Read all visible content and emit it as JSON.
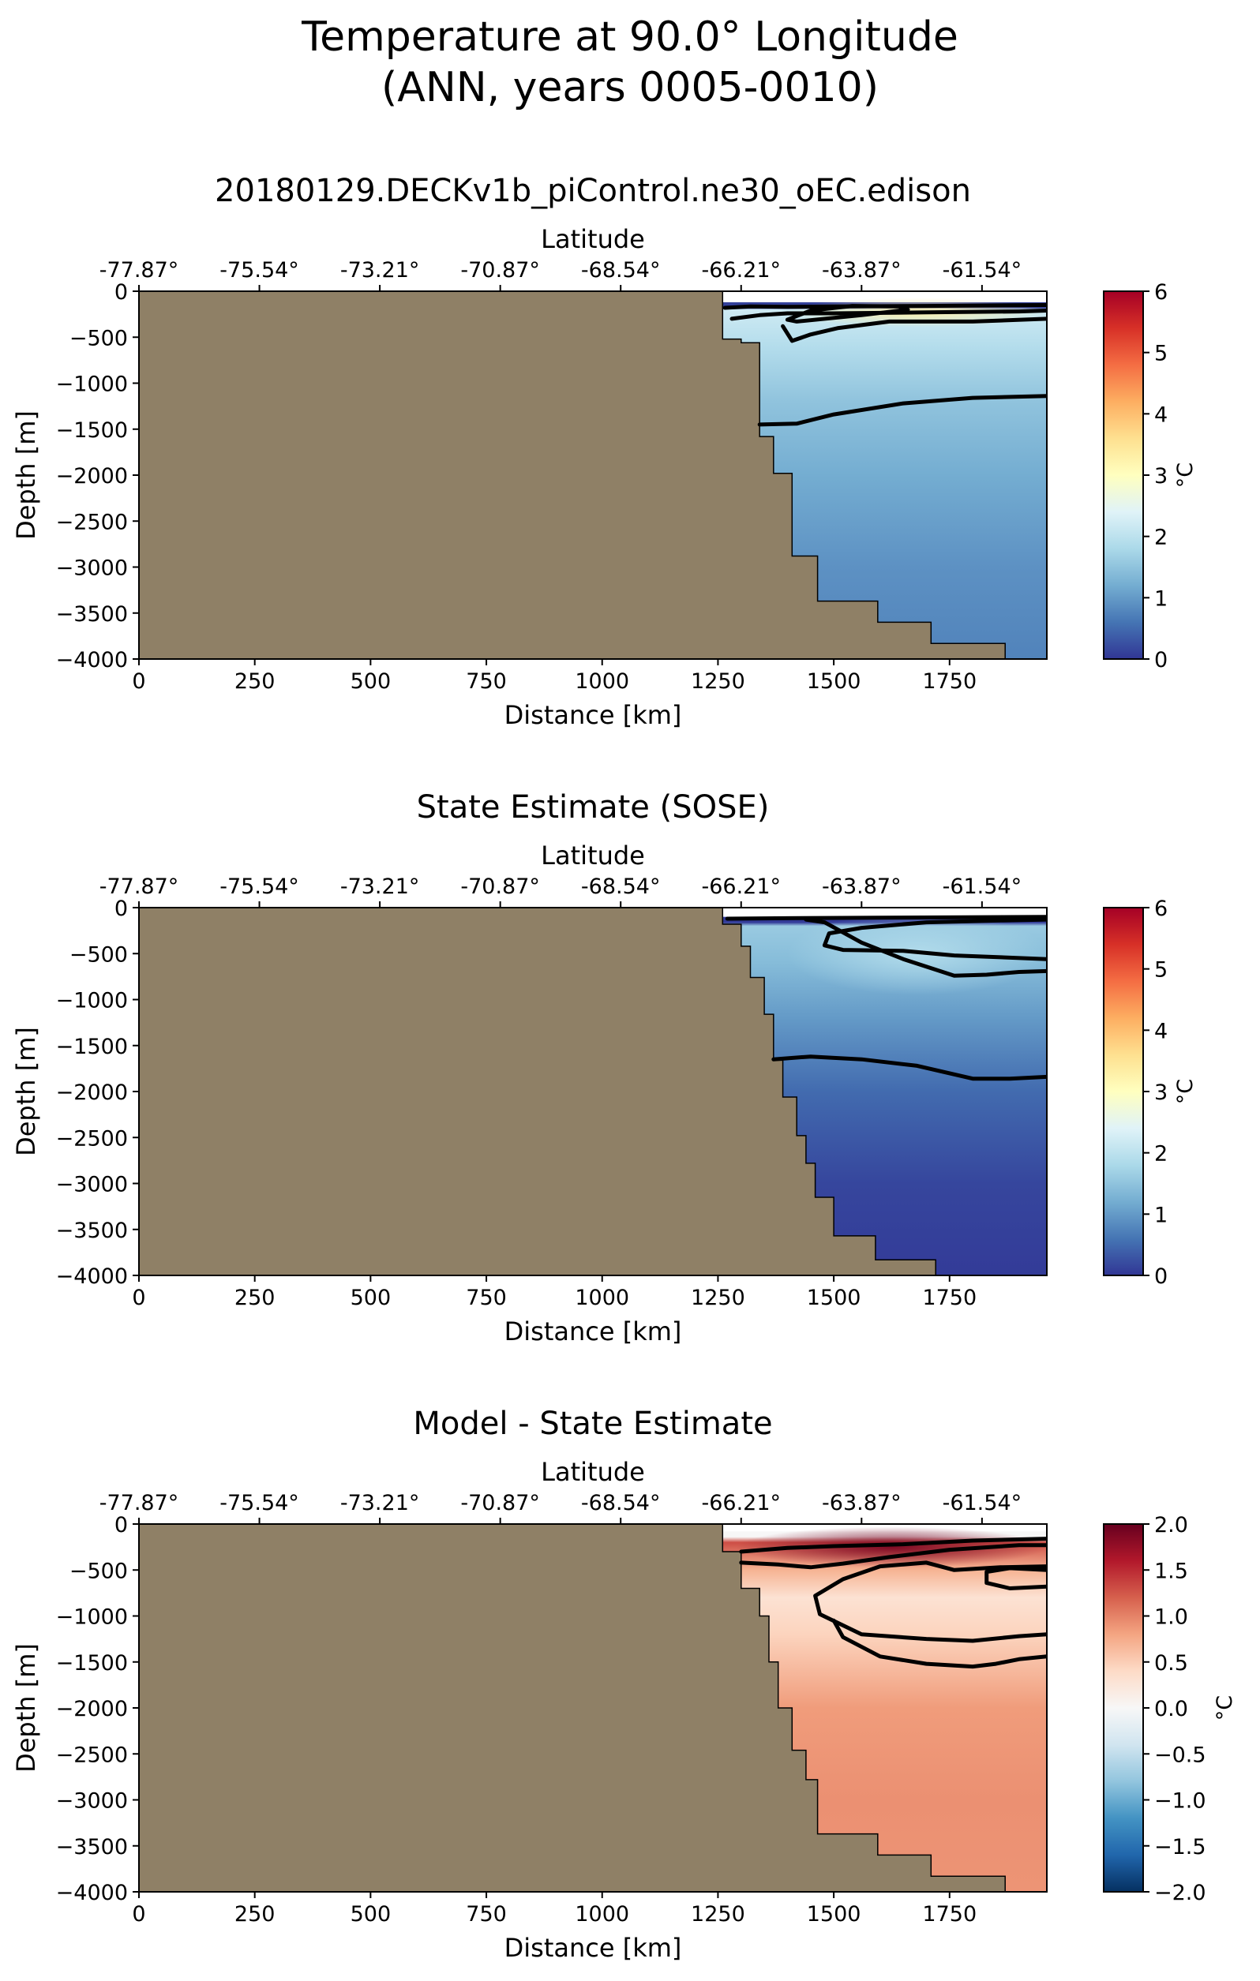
{
  "figure": {
    "title_line1": "Temperature at 90.0° Longitude",
    "title_line2": "(ANN, years 0005-0010)"
  },
  "colors": {
    "land": "#8f8066",
    "contour": "#000000",
    "rdylbu": [
      "#313695",
      "#4575b4",
      "#74add1",
      "#abd9e9",
      "#e0f3f8",
      "#ffffbf",
      "#fee090",
      "#fdae61",
      "#f46d43",
      "#d73027",
      "#a50026"
    ],
    "rdbu": [
      "#053061",
      "#2166ac",
      "#4393c3",
      "#92c5de",
      "#d1e5f0",
      "#f7f7f7",
      "#fddbc7",
      "#f4a582",
      "#d6604d",
      "#b2182b",
      "#67001f"
    ]
  },
  "chart_data": [
    {
      "type": "heatmap",
      "title": "20180129.DECKv1b_piControl.ne30_oEC.edison",
      "xlabel": "Distance [km]",
      "ylabel": "Depth [m]",
      "top_xlabel": "Latitude",
      "xlim": [
        0,
        1960
      ],
      "ylim": [
        -4000,
        0
      ],
      "xticks": [
        0,
        250,
        500,
        750,
        1000,
        1250,
        1500,
        1750
      ],
      "xtick_labels": [
        "0",
        "250",
        "500",
        "750",
        "1000",
        "1250",
        "1500",
        "1750"
      ],
      "yticks": [
        0,
        -500,
        -1000,
        -1500,
        -2000,
        -2500,
        -3000,
        -3500,
        -4000
      ],
      "ytick_labels": [
        "0",
        "−500",
        "−1000",
        "−1500",
        "−2000",
        "−2500",
        "−3000",
        "−3500",
        "−4000"
      ],
      "lat_tick_positions_km": [
        0,
        260,
        520,
        780,
        1040,
        1300,
        1560,
        1820
      ],
      "lat_ticks": [
        "-77.87°",
        "-75.54°",
        "-73.21°",
        "-70.87°",
        "-68.54°",
        "-66.21°",
        "-63.87°",
        "-61.54°"
      ],
      "colorbar": {
        "label": "°C",
        "range": [
          0,
          6
        ],
        "ticks": [
          0,
          1,
          2,
          3,
          4,
          5,
          6
        ],
        "tick_labels": [
          "0",
          "1",
          "2",
          "3",
          "4",
          "5",
          "6"
        ],
        "cmap": "rdylbu"
      },
      "bathymetry": [
        [
          1260,
          -120
        ],
        [
          1260,
          -520
        ],
        [
          1300,
          -520
        ],
        [
          1300,
          -560
        ],
        [
          1340,
          -560
        ],
        [
          1340,
          -1580
        ],
        [
          1370,
          -1580
        ],
        [
          1370,
          -1980
        ],
        [
          1410,
          -1980
        ],
        [
          1410,
          -2880
        ],
        [
          1465,
          -2880
        ],
        [
          1465,
          -3370
        ],
        [
          1595,
          -3370
        ],
        [
          1595,
          -3600
        ],
        [
          1710,
          -3600
        ],
        [
          1710,
          -3830
        ],
        [
          1870,
          -3830
        ],
        [
          1870,
          -4000
        ]
      ],
      "field": {
        "top": -120,
        "surface_value": 0.1,
        "surface_depth": -180,
        "warm_core": {
          "x_range": [
            1400,
            1960
          ],
          "depth": -230,
          "max_value": 3.3
        },
        "profile": [
          [
            -200,
            2.2
          ],
          [
            -600,
            1.9
          ],
          [
            -1200,
            1.5
          ],
          [
            -2000,
            1.2
          ],
          [
            -3000,
            0.9
          ],
          [
            -4000,
            0.75
          ]
        ]
      },
      "contours": [
        [
          [
            1265,
            -180
          ],
          [
            1320,
            -165
          ],
          [
            1400,
            -170
          ],
          [
            1500,
            -165
          ],
          [
            1700,
            -160
          ],
          [
            1960,
            -150
          ]
        ],
        [
          [
            1280,
            -300
          ],
          [
            1340,
            -260
          ],
          [
            1400,
            -240
          ],
          [
            1500,
            -240
          ],
          [
            1700,
            -230
          ],
          [
            1900,
            -220
          ],
          [
            1960,
            -210
          ]
        ],
        [
          [
            1390,
            -380
          ],
          [
            1410,
            -540
          ],
          [
            1450,
            -470
          ],
          [
            1510,
            -400
          ],
          [
            1620,
            -330
          ],
          [
            1800,
            -330
          ],
          [
            1960,
            -300
          ]
        ],
        [
          [
            1400,
            -310
          ],
          [
            1450,
            -210
          ],
          [
            1540,
            -160
          ],
          [
            1640,
            -165
          ],
          [
            1660,
            -200
          ],
          [
            1560,
            -260
          ],
          [
            1420,
            -330
          ],
          [
            1400,
            -310
          ]
        ],
        [
          [
            1340,
            -1450
          ],
          [
            1420,
            -1440
          ],
          [
            1500,
            -1340
          ],
          [
            1650,
            -1220
          ],
          [
            1800,
            -1160
          ],
          [
            1960,
            -1140
          ]
        ]
      ]
    },
    {
      "type": "heatmap",
      "title": "State Estimate (SOSE)",
      "xlabel": "Distance [km]",
      "ylabel": "Depth [m]",
      "top_xlabel": "Latitude",
      "xlim": [
        0,
        1960
      ],
      "ylim": [
        -4000,
        0
      ],
      "xticks": [
        0,
        250,
        500,
        750,
        1000,
        1250,
        1500,
        1750
      ],
      "xtick_labels": [
        "0",
        "250",
        "500",
        "750",
        "1000",
        "1250",
        "1500",
        "1750"
      ],
      "yticks": [
        0,
        -500,
        -1000,
        -1500,
        -2000,
        -2500,
        -3000,
        -3500,
        -4000
      ],
      "ytick_labels": [
        "0",
        "−500",
        "−1000",
        "−1500",
        "−2000",
        "−2500",
        "−3000",
        "−3500",
        "−4000"
      ],
      "lat_tick_positions_km": [
        0,
        260,
        520,
        780,
        1040,
        1300,
        1560,
        1820
      ],
      "lat_ticks": [
        "-77.87°",
        "-75.54°",
        "-73.21°",
        "-70.87°",
        "-68.54°",
        "-66.21°",
        "-63.87°",
        "-61.54°"
      ],
      "colorbar": {
        "label": "°C",
        "range": [
          0,
          6
        ],
        "ticks": [
          0,
          1,
          2,
          3,
          4,
          5,
          6
        ],
        "tick_labels": [
          "0",
          "1",
          "2",
          "3",
          "4",
          "5",
          "6"
        ],
        "cmap": "rdylbu"
      },
      "bathymetry": [
        [
          1260,
          -100
        ],
        [
          1260,
          -180
        ],
        [
          1300,
          -180
        ],
        [
          1300,
          -420
        ],
        [
          1320,
          -420
        ],
        [
          1320,
          -760
        ],
        [
          1350,
          -760
        ],
        [
          1350,
          -1160
        ],
        [
          1370,
          -1160
        ],
        [
          1370,
          -1660
        ],
        [
          1390,
          -1660
        ],
        [
          1390,
          -2060
        ],
        [
          1420,
          -2060
        ],
        [
          1420,
          -2480
        ],
        [
          1440,
          -2480
        ],
        [
          1440,
          -2780
        ],
        [
          1460,
          -2780
        ],
        [
          1460,
          -3150
        ],
        [
          1500,
          -3150
        ],
        [
          1500,
          -3570
        ],
        [
          1590,
          -3570
        ],
        [
          1590,
          -3830
        ],
        [
          1720,
          -3830
        ],
        [
          1720,
          -4000
        ]
      ],
      "field": {
        "top": -100,
        "surface_value": 0.05,
        "surface_depth": -160,
        "warm_core": {
          "x_range": [
            1400,
            1960
          ],
          "depth": -500,
          "max_value": 1.9
        },
        "profile": [
          [
            -200,
            1.6
          ],
          [
            -600,
            1.4
          ],
          [
            -1200,
            1.0
          ],
          [
            -2000,
            0.5
          ],
          [
            -3000,
            0.15
          ],
          [
            -4000,
            0.05
          ]
        ]
      },
      "contours": [
        [
          [
            1270,
            -120
          ],
          [
            1400,
            -115
          ],
          [
            1600,
            -110
          ],
          [
            1960,
            -100
          ]
        ],
        [
          [
            1960,
            -130
          ],
          [
            1860,
            -140
          ],
          [
            1700,
            -160
          ],
          [
            1560,
            -220
          ],
          [
            1490,
            -280
          ],
          [
            1480,
            -410
          ],
          [
            1520,
            -460
          ],
          [
            1650,
            -470
          ],
          [
            1760,
            -520
          ],
          [
            1960,
            -560
          ]
        ],
        [
          [
            1960,
            -690
          ],
          [
            1900,
            -700
          ],
          [
            1830,
            -730
          ],
          [
            1760,
            -740
          ],
          [
            1650,
            -560
          ],
          [
            1560,
            -380
          ],
          [
            1480,
            -160
          ],
          [
            1440,
            -130
          ]
        ],
        [
          [
            1370,
            -1650
          ],
          [
            1450,
            -1620
          ],
          [
            1560,
            -1650
          ],
          [
            1680,
            -1720
          ],
          [
            1800,
            -1860
          ],
          [
            1880,
            -1860
          ],
          [
            1960,
            -1840
          ]
        ]
      ]
    },
    {
      "type": "heatmap",
      "title": "Model - State Estimate",
      "xlabel": "Distance [km]",
      "ylabel": "Depth [m]",
      "top_xlabel": "Latitude",
      "xlim": [
        0,
        1960
      ],
      "ylim": [
        -4000,
        0
      ],
      "xticks": [
        0,
        250,
        500,
        750,
        1000,
        1250,
        1500,
        1750
      ],
      "xtick_labels": [
        "0",
        "250",
        "500",
        "750",
        "1000",
        "1250",
        "1500",
        "1750"
      ],
      "yticks": [
        0,
        -500,
        -1000,
        -1500,
        -2000,
        -2500,
        -3000,
        -3500,
        -4000
      ],
      "ytick_labels": [
        "0",
        "−500",
        "−1000",
        "−1500",
        "−2000",
        "−2500",
        "−3000",
        "−3500",
        "−4000"
      ],
      "lat_tick_positions_km": [
        0,
        260,
        520,
        780,
        1040,
        1300,
        1560,
        1820
      ],
      "lat_ticks": [
        "-77.87°",
        "-75.54°",
        "-73.21°",
        "-70.87°",
        "-68.54°",
        "-66.21°",
        "-63.87°",
        "-61.54°"
      ],
      "colorbar": {
        "label": "°C",
        "range": [
          -2,
          2
        ],
        "ticks": [
          2,
          1.5,
          1,
          0.5,
          0,
          -0.5,
          -1,
          -1.5,
          -2
        ],
        "tick_labels": [
          "2.0",
          "1.5",
          "1.0",
          "0.5",
          "0.0",
          "−0.5",
          "−1.0",
          "−1.5",
          "−2.0"
        ],
        "cmap": "rdbu"
      },
      "bathymetry": [
        [
          1260,
          -80
        ],
        [
          1260,
          -300
        ],
        [
          1300,
          -300
        ],
        [
          1300,
          -700
        ],
        [
          1340,
          -700
        ],
        [
          1340,
          -1000
        ],
        [
          1360,
          -1000
        ],
        [
          1360,
          -1500
        ],
        [
          1380,
          -1500
        ],
        [
          1380,
          -2000
        ],
        [
          1410,
          -2000
        ],
        [
          1410,
          -2460
        ],
        [
          1440,
          -2460
        ],
        [
          1440,
          -2780
        ],
        [
          1465,
          -2780
        ],
        [
          1465,
          -3370
        ],
        [
          1595,
          -3370
        ],
        [
          1595,
          -3600
        ],
        [
          1710,
          -3600
        ],
        [
          1710,
          -3830
        ],
        [
          1870,
          -3830
        ],
        [
          1870,
          -4000
        ]
      ],
      "field": {
        "top": -80,
        "surface_value": 0.0,
        "surface_depth": -140,
        "warm_core": {
          "x_range": [
            1290,
            1960
          ],
          "depth": -250,
          "max_value": 1.9
        },
        "profile": [
          [
            -200,
            1.3
          ],
          [
            -500,
            0.7
          ],
          [
            -800,
            0.3
          ],
          [
            -1200,
            0.45
          ],
          [
            -2000,
            0.85
          ],
          [
            -3000,
            0.92
          ],
          [
            -4000,
            0.9
          ]
        ]
      },
      "contours": [
        [
          [
            1300,
            -300
          ],
          [
            1400,
            -260
          ],
          [
            1500,
            -240
          ],
          [
            1650,
            -220
          ],
          [
            1800,
            -180
          ],
          [
            1960,
            -160
          ]
        ],
        [
          [
            1300,
            -420
          ],
          [
            1380,
            -440
          ],
          [
            1450,
            -470
          ],
          [
            1520,
            -430
          ],
          [
            1620,
            -360
          ],
          [
            1750,
            -280
          ],
          [
            1900,
            -230
          ],
          [
            1960,
            -230
          ]
        ],
        [
          [
            1960,
            -460
          ],
          [
            1860,
            -470
          ],
          [
            1760,
            -500
          ],
          [
            1700,
            -420
          ],
          [
            1600,
            -460
          ],
          [
            1520,
            -600
          ],
          [
            1460,
            -780
          ],
          [
            1470,
            -980
          ],
          [
            1560,
            -1200
          ],
          [
            1700,
            -1250
          ],
          [
            1800,
            -1270
          ],
          [
            1900,
            -1220
          ],
          [
            1960,
            -1200
          ]
        ],
        [
          [
            1960,
            -500
          ],
          [
            1880,
            -480
          ],
          [
            1830,
            -520
          ],
          [
            1830,
            -640
          ],
          [
            1880,
            -700
          ],
          [
            1960,
            -680
          ]
        ],
        [
          [
            1960,
            -1440
          ],
          [
            1900,
            -1470
          ],
          [
            1850,
            -1520
          ],
          [
            1800,
            -1550
          ],
          [
            1700,
            -1520
          ],
          [
            1600,
            -1440
          ],
          [
            1520,
            -1230
          ],
          [
            1500,
            -1050
          ]
        ]
      ]
    }
  ]
}
